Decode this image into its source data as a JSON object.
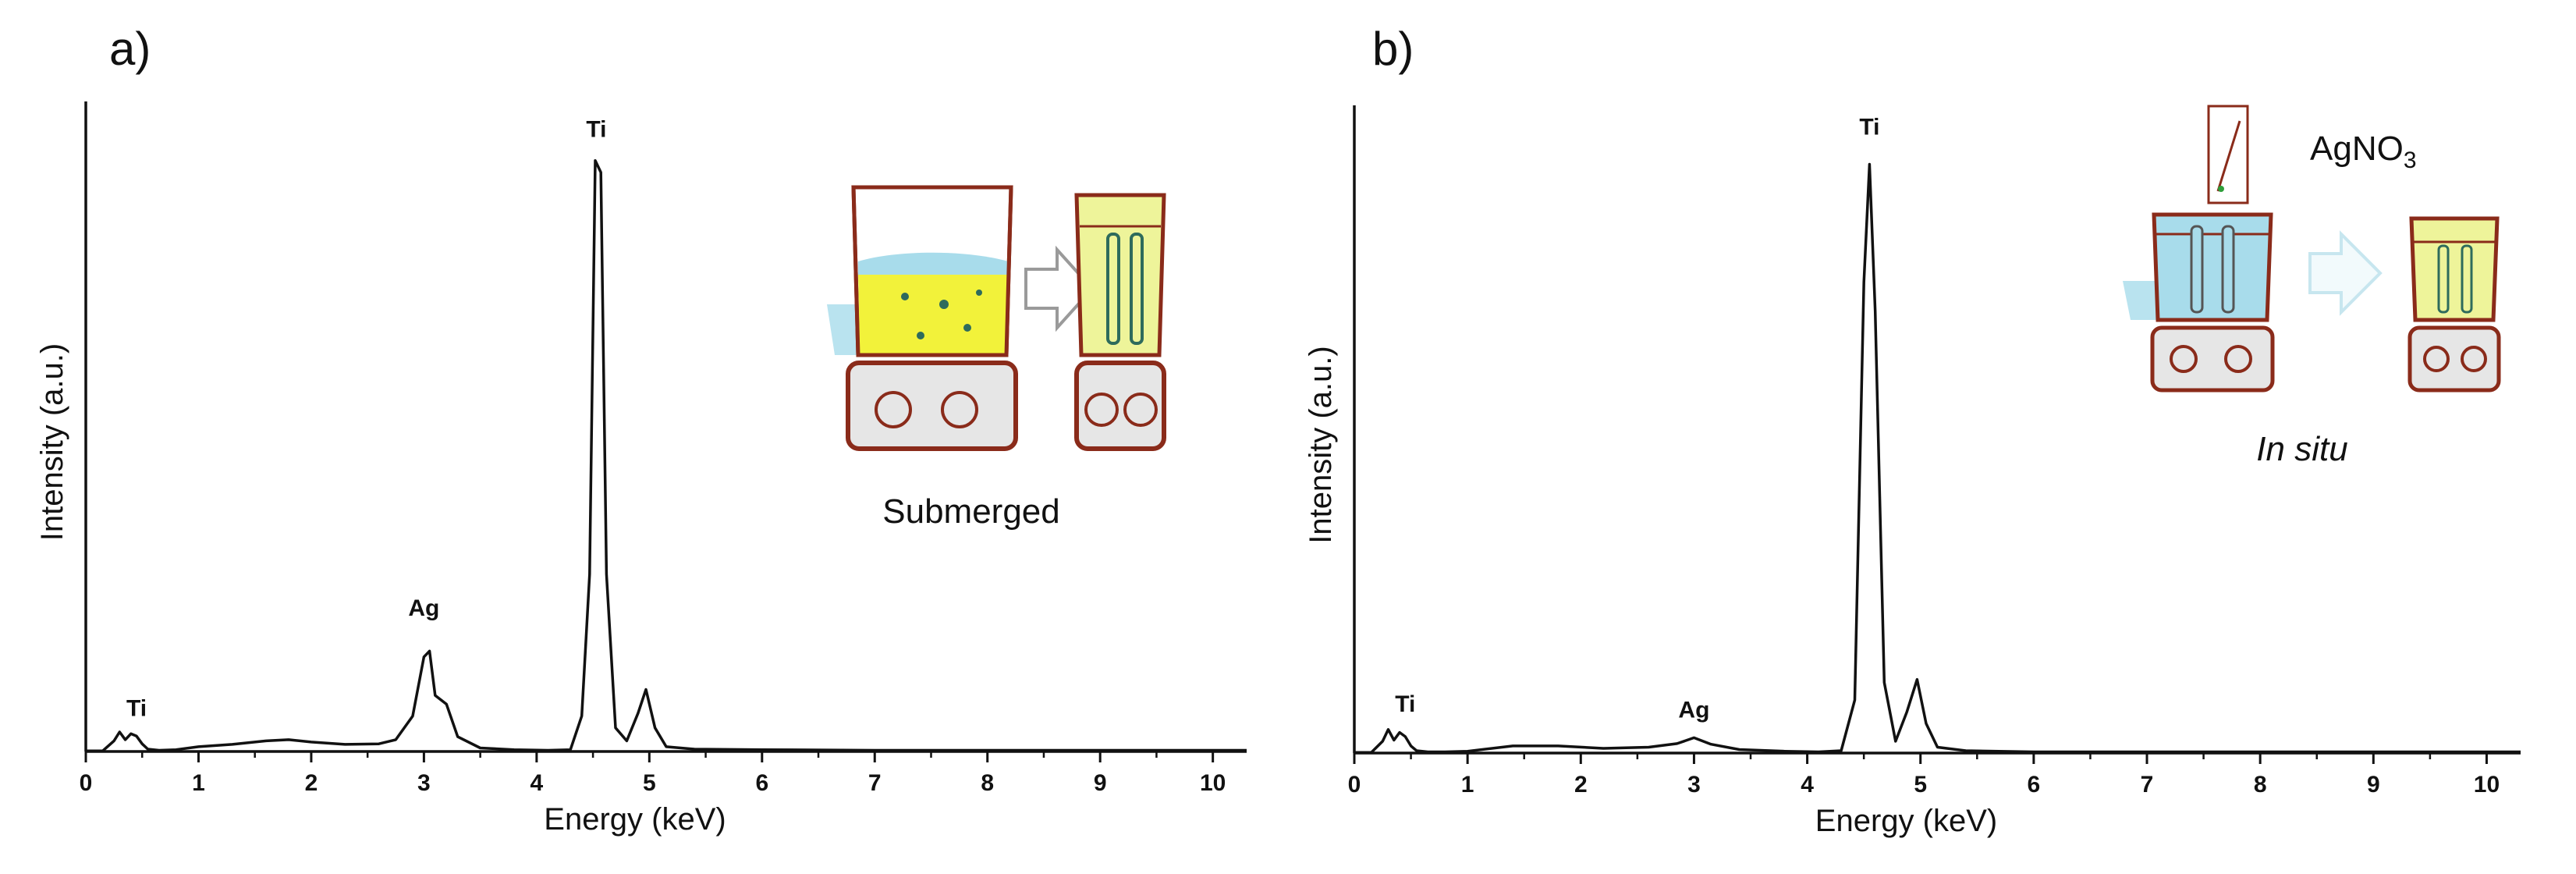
{
  "chart_data": [
    {
      "type": "line",
      "panel_label": "a)",
      "xlabel": "Energy (keV)",
      "ylabel": "Intensity (a.u.)",
      "xlim": [
        0,
        10.3
      ],
      "x_ticks": [
        "0",
        "1",
        "2",
        "3",
        "4",
        "5",
        "6",
        "7",
        "8",
        "9",
        "10"
      ],
      "grid": false,
      "series": [
        {
          "x": [
            0.0,
            0.15,
            0.25,
            0.3,
            0.35,
            0.4,
            0.45,
            0.5,
            0.55,
            0.65,
            0.8,
            1.0,
            1.3,
            1.6,
            1.8,
            2.0,
            2.3,
            2.6,
            2.75,
            2.9,
            3.0,
            3.05,
            3.1,
            3.2,
            3.3,
            3.5,
            3.8,
            4.1,
            4.3,
            4.4,
            4.47,
            4.52,
            4.57,
            4.62,
            4.7,
            4.8,
            4.9,
            4.97,
            5.05,
            5.15,
            5.4,
            6.0,
            7.0,
            8.0,
            9.0,
            10.0,
            10.3
          ],
          "y": [
            1,
            1,
            18,
            33,
            20,
            30,
            26,
            13,
            4,
            2,
            3,
            8,
            12,
            18,
            20,
            16,
            12,
            13,
            20,
            60,
            160,
            170,
            95,
            80,
            25,
            6,
            3,
            2,
            3,
            60,
            300,
            1000,
            980,
            300,
            40,
            18,
            65,
            105,
            40,
            8,
            4,
            3,
            2,
            2,
            2,
            2,
            2
          ]
        }
      ],
      "annotations": [
        {
          "text": "Ti",
          "x": 0.45,
          "y": 60
        },
        {
          "text": "Ag",
          "x": 3.0,
          "y": 230
        },
        {
          "text": "Ti",
          "x": 4.53,
          "y": 1040
        }
      ],
      "inset_caption": "Submerged"
    },
    {
      "type": "line",
      "panel_label": "b)",
      "xlabel": "Energy (keV)",
      "ylabel": "Intensity (a.u.)",
      "xlim": [
        0,
        10.3
      ],
      "x_ticks": [
        "0",
        "1",
        "2",
        "3",
        "4",
        "5",
        "6",
        "7",
        "8",
        "9",
        "10"
      ],
      "grid": false,
      "series": [
        {
          "x": [
            0.0,
            0.15,
            0.25,
            0.3,
            0.35,
            0.4,
            0.45,
            0.5,
            0.55,
            0.65,
            0.8,
            1.0,
            1.4,
            1.8,
            2.2,
            2.6,
            2.85,
            3.0,
            3.15,
            3.4,
            3.8,
            4.1,
            4.3,
            4.42,
            4.5,
            4.55,
            4.6,
            4.68,
            4.78,
            4.88,
            4.97,
            5.05,
            5.15,
            5.4,
            6.0,
            7.0,
            8.0,
            9.0,
            10.0,
            10.3
          ],
          "y": [
            1,
            1,
            20,
            40,
            22,
            35,
            28,
            12,
            4,
            2,
            2,
            3,
            12,
            12,
            8,
            10,
            16,
            26,
            15,
            6,
            3,
            2,
            4,
            90,
            800,
            1000,
            750,
            120,
            20,
            70,
            125,
            50,
            10,
            4,
            2,
            2,
            2,
            2,
            2,
            2
          ]
        }
      ],
      "annotations": [
        {
          "text": "Ti",
          "x": 0.45,
          "y": 70
        },
        {
          "text": "Ag",
          "x": 3.0,
          "y": 60
        },
        {
          "text": "Ti",
          "x": 4.55,
          "y": 1050
        }
      ],
      "inset_reagent": "AgNO",
      "inset_reagent_sub": "3",
      "inset_caption": "In situ"
    }
  ],
  "colors": {
    "beaker_outline": "#8a2b1a",
    "solution_yellow": "#f2f23a",
    "solution_pale_yellow": "#eef49a",
    "solution_blue": "#a8dceb",
    "arrow_outline": "#9a9a9a",
    "arrow_light": "#c7e6ef"
  }
}
